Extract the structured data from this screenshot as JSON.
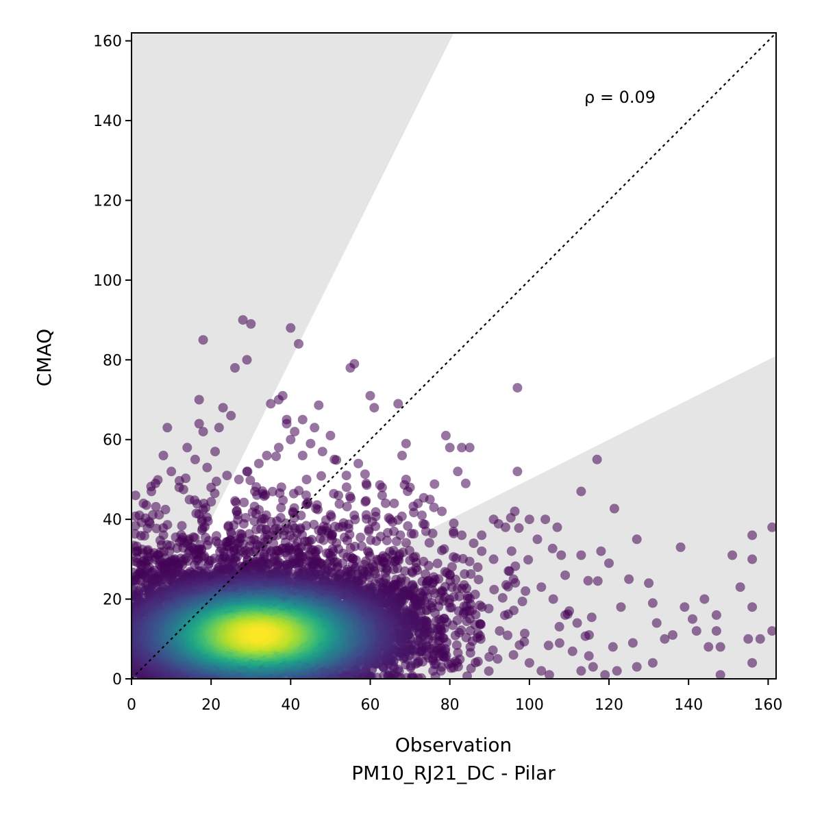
{
  "chart_data": {
    "type": "scatter",
    "title": "",
    "xlabel": "Observation",
    "xlabel_sub": "PM10_RJ21_DC - Pilar",
    "ylabel": "CMAQ",
    "xlim": [
      0,
      162
    ],
    "ylim": [
      0,
      162
    ],
    "xticks": [
      0,
      20,
      40,
      60,
      80,
      100,
      120,
      140,
      160
    ],
    "yticks": [
      0,
      20,
      40,
      60,
      80,
      100,
      120,
      140,
      160
    ],
    "grid": false,
    "legend": "none",
    "colormap": "viridis (point density)",
    "shaded_band_slopes": [
      0.5,
      2.0
    ],
    "reference_line": "1:1 dotted",
    "annotation": "ρ = 0.09",
    "point_color_low_density": "#440154",
    "point_color_high_density": "#fde725",
    "band_color": "#e5e5e5",
    "outlier_points": [
      [
        1,
        46
      ],
      [
        6,
        49
      ],
      [
        9,
        63
      ],
      [
        10,
        52
      ],
      [
        17,
        70
      ],
      [
        17,
        64
      ],
      [
        18,
        62
      ],
      [
        18,
        85
      ],
      [
        22,
        63
      ],
      [
        23,
        68
      ],
      [
        25,
        66
      ],
      [
        26,
        78
      ],
      [
        28,
        90
      ],
      [
        29,
        80
      ],
      [
        30,
        89
      ],
      [
        35,
        69
      ],
      [
        37,
        70
      ],
      [
        38,
        71
      ],
      [
        39,
        65
      ],
      [
        39,
        64
      ],
      [
        40,
        88
      ],
      [
        42,
        84
      ],
      [
        41,
        62
      ],
      [
        43,
        65
      ],
      [
        46,
        63
      ],
      [
        50,
        61
      ],
      [
        55,
        78
      ],
      [
        56,
        79
      ],
      [
        60,
        71
      ],
      [
        61,
        68
      ],
      [
        63,
        48
      ],
      [
        67,
        69
      ],
      [
        68,
        56
      ],
      [
        69,
        59
      ],
      [
        69,
        50
      ],
      [
        70,
        48
      ],
      [
        72,
        44
      ],
      [
        76,
        43
      ],
      [
        79,
        61
      ],
      [
        80,
        58
      ],
      [
        83,
        58
      ],
      [
        85,
        58
      ],
      [
        82,
        52
      ],
      [
        84,
        49
      ],
      [
        88,
        36
      ],
      [
        91,
        40
      ],
      [
        94,
        38
      ],
      [
        96,
        25
      ],
      [
        97,
        73
      ],
      [
        97,
        52
      ],
      [
        100,
        40
      ],
      [
        102,
        35
      ],
      [
        104,
        40
      ],
      [
        107,
        38
      ],
      [
        108,
        31
      ],
      [
        109,
        26
      ],
      [
        110,
        17
      ],
      [
        113,
        31
      ],
      [
        113,
        47
      ],
      [
        117,
        55
      ],
      [
        118,
        32
      ],
      [
        120,
        29
      ],
      [
        123,
        18
      ],
      [
        125,
        25
      ],
      [
        127,
        35
      ],
      [
        130,
        24
      ],
      [
        131,
        19
      ],
      [
        132,
        14
      ],
      [
        134,
        10
      ],
      [
        136,
        11
      ],
      [
        138,
        33
      ],
      [
        139,
        18
      ],
      [
        141,
        15
      ],
      [
        142,
        12
      ],
      [
        144,
        20
      ],
      [
        145,
        8
      ],
      [
        147,
        16
      ],
      [
        147,
        12
      ],
      [
        148,
        8
      ],
      [
        148,
        1
      ],
      [
        151,
        31
      ],
      [
        153,
        23
      ],
      [
        155,
        10
      ],
      [
        156,
        36
      ],
      [
        156,
        30
      ],
      [
        156,
        18
      ],
      [
        156,
        4
      ],
      [
        158,
        10
      ],
      [
        161,
        38
      ],
      [
        161,
        12
      ],
      [
        119,
        1
      ],
      [
        116,
        3
      ],
      [
        113,
        2
      ],
      [
        105,
        1
      ],
      [
        103,
        2
      ],
      [
        100,
        4
      ],
      [
        96,
        6
      ],
      [
        92,
        5
      ],
      [
        122,
        2
      ],
      [
        127,
        3
      ],
      [
        131,
        4
      ],
      [
        121,
        8
      ],
      [
        126,
        9
      ],
      [
        115,
        11
      ],
      [
        112,
        14
      ],
      [
        109,
        16
      ],
      [
        106,
        20
      ],
      [
        103,
        23
      ],
      [
        99,
        22
      ],
      [
        95,
        27
      ],
      [
        91,
        30
      ],
      [
        88,
        32
      ],
      [
        86,
        34
      ],
      [
        83,
        36
      ],
      [
        81,
        39
      ],
      [
        78,
        42
      ],
      [
        75,
        45
      ],
      [
        73,
        41
      ],
      [
        66,
        44
      ],
      [
        63,
        46
      ],
      [
        59,
        49
      ],
      [
        57,
        54
      ],
      [
        54,
        51
      ],
      [
        51,
        55
      ],
      [
        48,
        57
      ],
      [
        45,
        59
      ],
      [
        43,
        56
      ],
      [
        40,
        60
      ],
      [
        37,
        58
      ],
      [
        34,
        56
      ],
      [
        32,
        54
      ],
      [
        29,
        52
      ],
      [
        27,
        50
      ],
      [
        24,
        51
      ],
      [
        21,
        57
      ],
      [
        19,
        53
      ],
      [
        16,
        55
      ],
      [
        14,
        58
      ],
      [
        12,
        48
      ],
      [
        8,
        56
      ],
      [
        5,
        47
      ],
      [
        3,
        44
      ],
      [
        2,
        41
      ],
      [
        20,
        48
      ],
      [
        31,
        47
      ],
      [
        44,
        50
      ],
      [
        52,
        46
      ],
      [
        65,
        40
      ],
      [
        74,
        37
      ],
      [
        87,
        28
      ]
    ],
    "density_core": {
      "center": [
        32,
        11
      ],
      "x_spread": 18,
      "y_spread": 6,
      "points_approx": 6000
    }
  },
  "annotation_text": "ρ = 0.09"
}
